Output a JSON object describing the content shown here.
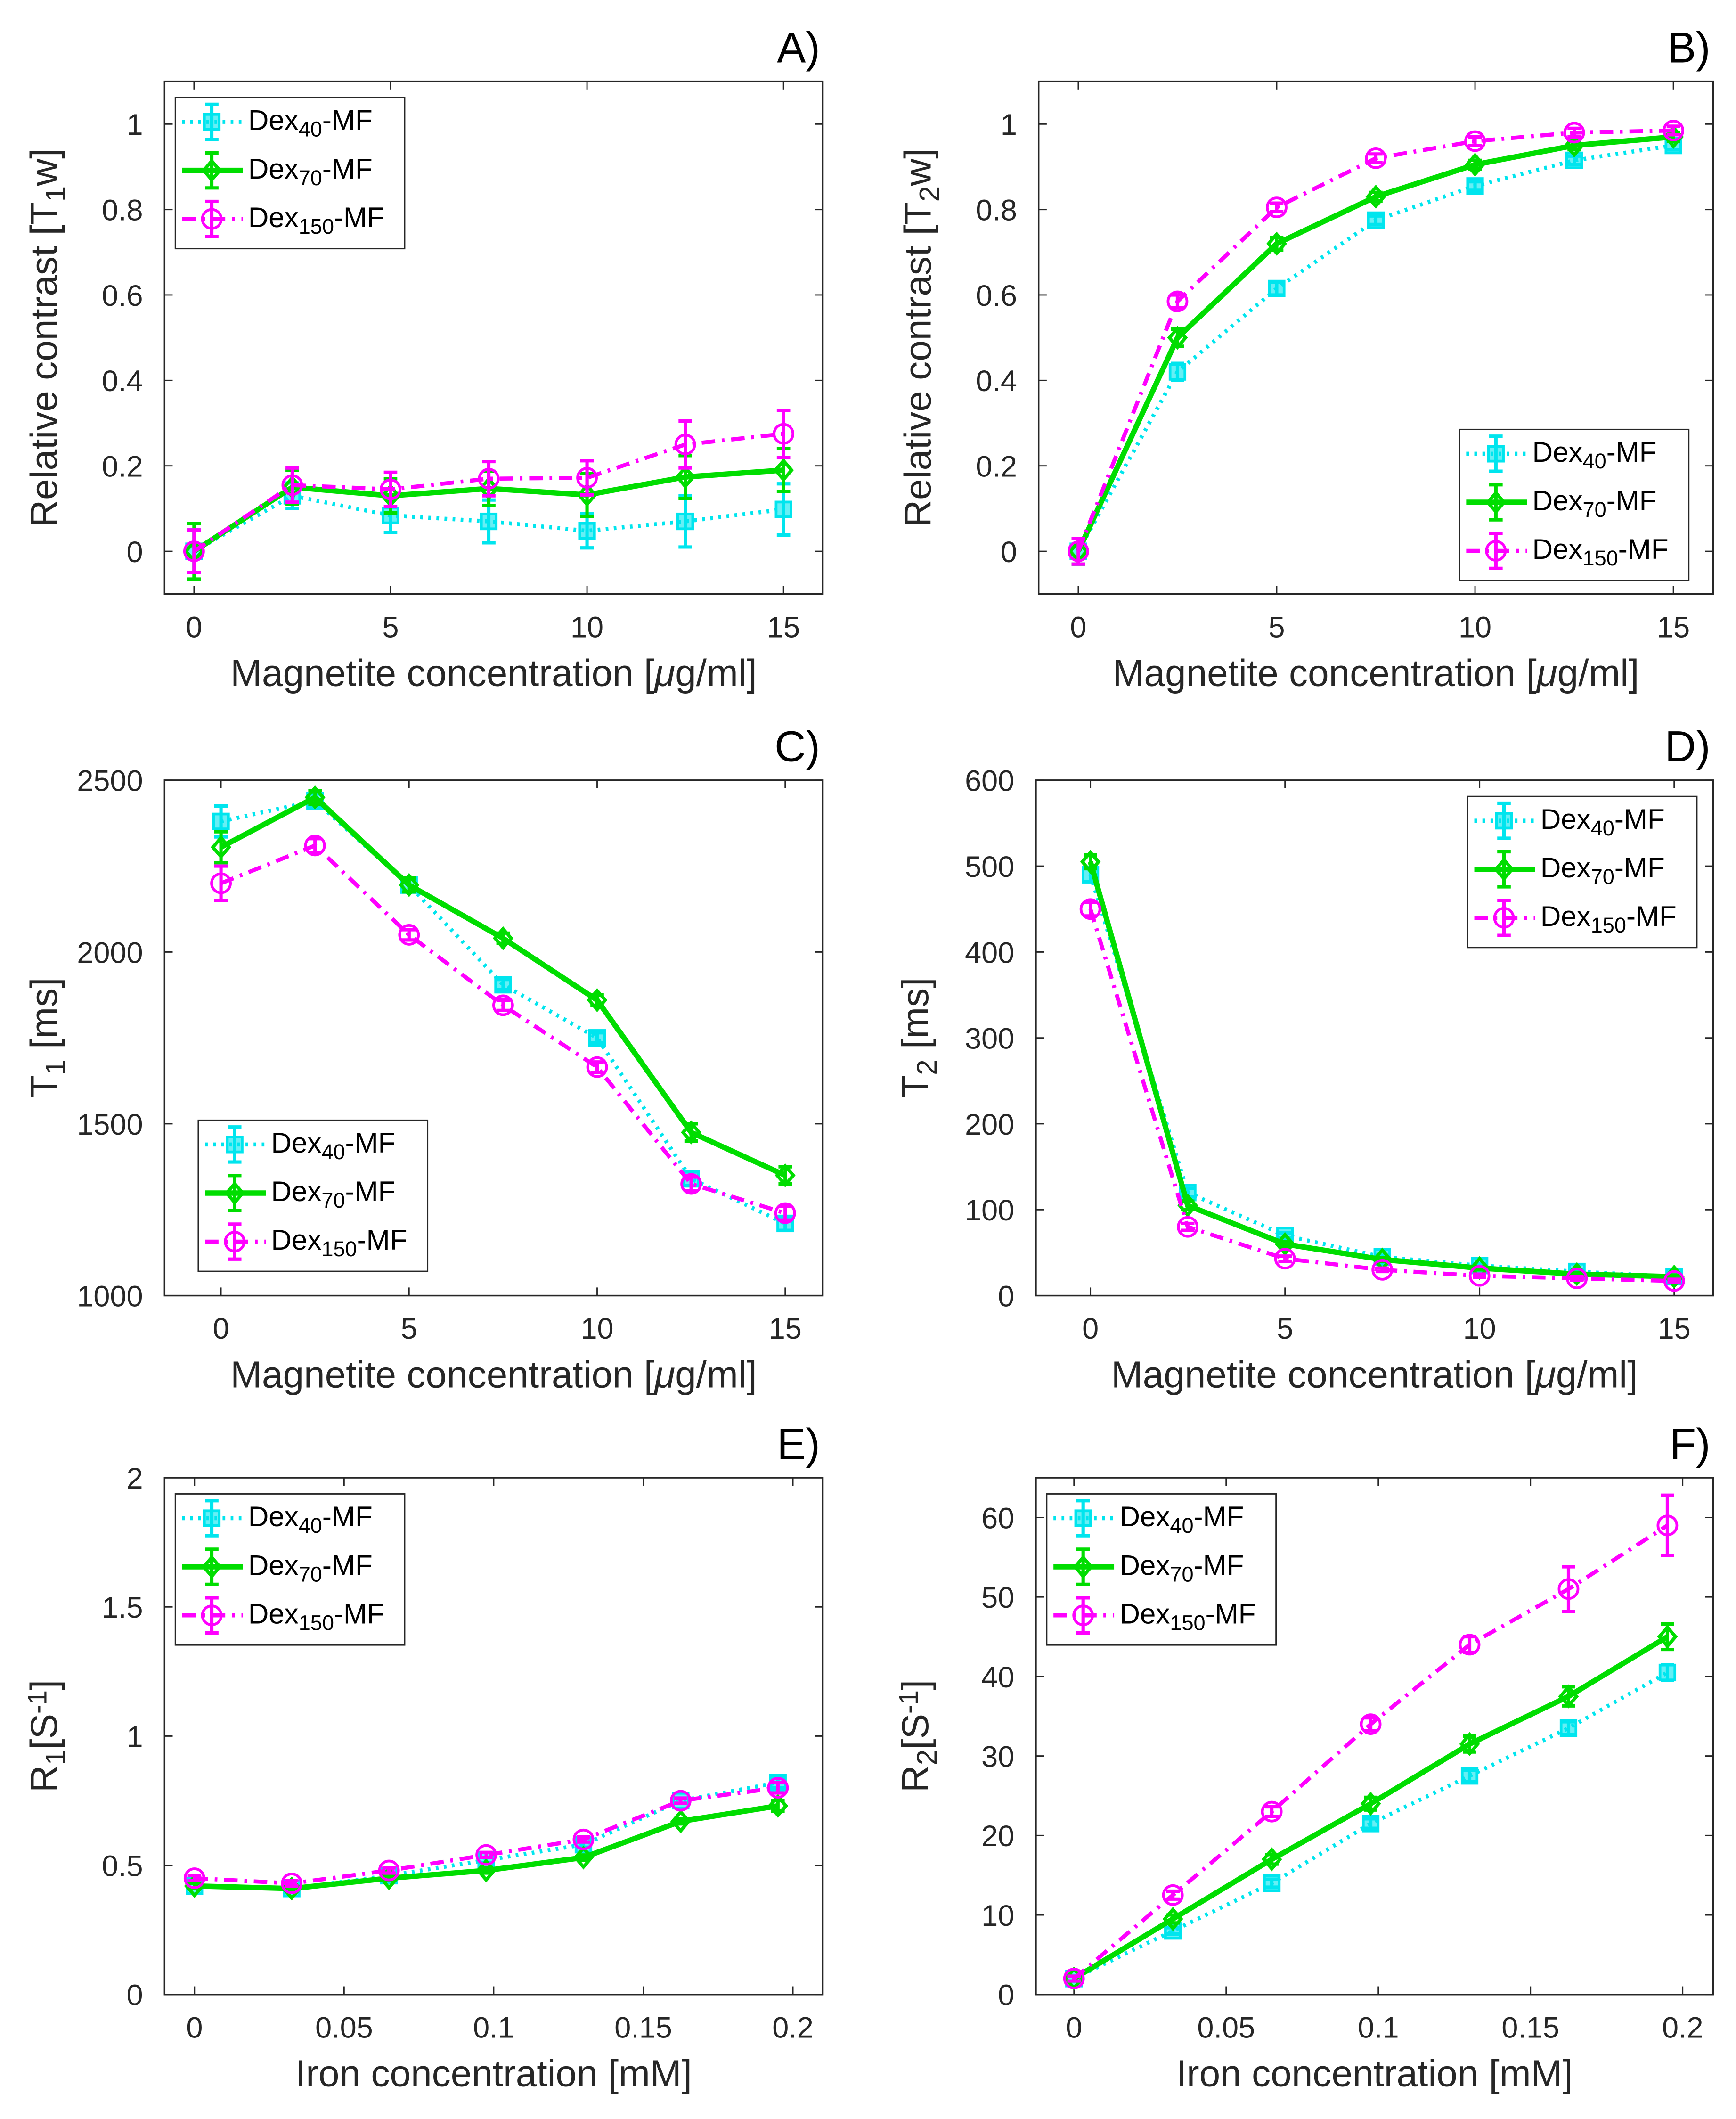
{
  "colors": {
    "Dex40": "#00e5ee",
    "Dex70": "#00dd00",
    "Dex150": "#ff00ff"
  },
  "chart_data": [
    {
      "panel": "A)",
      "type": "line",
      "xlabel": [
        {
          "t": "Magnetite concentration ["
        },
        {
          "t": "μ",
          "it": true
        },
        {
          "t": "g/ml]"
        }
      ],
      "ylabel": [
        {
          "t": "Relative contrast [T"
        },
        {
          "t": "1",
          "sub": true
        },
        {
          "t": "w]"
        }
      ],
      "xlim": [
        -0.75,
        16
      ],
      "ylim": [
        -0.1,
        1.1
      ],
      "xticks": [
        0,
        5,
        10,
        15
      ],
      "xticklabels": [
        "0",
        "5",
        "10",
        "15"
      ],
      "yticks": [
        0,
        0.2,
        0.4,
        0.6,
        0.8,
        1
      ],
      "yticklabels": [
        "0",
        "0.2",
        "0.4",
        "0.6",
        "0.8",
        "1"
      ],
      "legend": "top-left",
      "x": [
        0,
        2.5,
        5,
        7.5,
        10,
        12.5,
        15
      ],
      "series": [
        {
          "name": [
            {
              "t": "Dex"
            },
            {
              "t": "40",
              "sub": true
            },
            {
              "t": "-MF"
            }
          ],
          "key": "Dex40",
          "values": [
            0,
            0.13,
            0.084,
            0.07,
            0.048,
            0.07,
            0.098
          ],
          "err": [
            0.05,
            0.03,
            0.04,
            0.05,
            0.04,
            0.06,
            0.06
          ]
        },
        {
          "name": [
            {
              "t": "Dex"
            },
            {
              "t": "70",
              "sub": true
            },
            {
              "t": "-MF"
            }
          ],
          "key": "Dex70",
          "values": [
            0,
            0.15,
            0.13,
            0.147,
            0.132,
            0.174,
            0.19
          ],
          "err": [
            0.065,
            0.04,
            0.04,
            0.04,
            0.05,
            0.05,
            0.05
          ]
        },
        {
          "name": [
            {
              "t": "Dex"
            },
            {
              "t": "150",
              "sub": true
            },
            {
              "t": "-MF"
            }
          ],
          "key": "Dex150",
          "values": [
            0,
            0.155,
            0.145,
            0.17,
            0.172,
            0.25,
            0.275
          ],
          "err": [
            0.05,
            0.04,
            0.04,
            0.04,
            0.04,
            0.055,
            0.055
          ]
        }
      ]
    },
    {
      "panel": "B)",
      "type": "line",
      "xlabel": [
        {
          "t": "Magnetite concentration ["
        },
        {
          "t": "μ",
          "it": true
        },
        {
          "t": "g/ml]"
        }
      ],
      "ylabel": [
        {
          "t": "Relative contrast [T"
        },
        {
          "t": "2",
          "sub": true
        },
        {
          "t": "w]"
        }
      ],
      "xlim": [
        -1,
        16
      ],
      "ylim": [
        -0.1,
        1.1
      ],
      "xticks": [
        0,
        5,
        10,
        15
      ],
      "xticklabels": [
        "0",
        "5",
        "10",
        "15"
      ],
      "yticks": [
        0,
        0.2,
        0.4,
        0.6,
        0.8,
        1
      ],
      "yticklabels": [
        "0",
        "0.2",
        "0.4",
        "0.6",
        "0.8",
        "1"
      ],
      "legend": "bottom-right",
      "x": [
        0,
        2.5,
        5,
        7.5,
        10,
        12.5,
        15
      ],
      "series": [
        {
          "name": [
            {
              "t": "Dex"
            },
            {
              "t": "40",
              "sub": true
            },
            {
              "t": "-MF"
            }
          ],
          "key": "Dex40",
          "values": [
            0,
            0.42,
            0.615,
            0.775,
            0.855,
            0.915,
            0.95
          ],
          "err": [
            0.03,
            0.02,
            0.015,
            0.01,
            0.01,
            0.01,
            0.01
          ]
        },
        {
          "name": [
            {
              "t": "Dex"
            },
            {
              "t": "70",
              "sub": true
            },
            {
              "t": "-MF"
            }
          ],
          "key": "Dex70",
          "values": [
            0,
            0.5,
            0.72,
            0.83,
            0.905,
            0.95,
            0.97
          ],
          "err": [
            0.03,
            0.02,
            0.015,
            0.01,
            0.01,
            0.01,
            0.01
          ]
        },
        {
          "name": [
            {
              "t": "Dex"
            },
            {
              "t": "150",
              "sub": true
            },
            {
              "t": "-MF"
            }
          ],
          "key": "Dex150",
          "values": [
            0,
            0.585,
            0.805,
            0.92,
            0.96,
            0.98,
            0.985
          ],
          "err": [
            0.03,
            0.015,
            0.01,
            0.01,
            0.01,
            0.01,
            0.01
          ]
        }
      ]
    },
    {
      "panel": "C)",
      "type": "line",
      "xlabel": [
        {
          "t": "Magnetite concentration ["
        },
        {
          "t": "μ",
          "it": true
        },
        {
          "t": "g/ml]"
        }
      ],
      "ylabel": [
        {
          "t": "T"
        },
        {
          "t": "1",
          "sub": true
        },
        {
          "t": " [ms]"
        }
      ],
      "xlim": [
        -1.5,
        16
      ],
      "ylim": [
        1000,
        2500
      ],
      "xticks": [
        0,
        5,
        10,
        15
      ],
      "xticklabels": [
        "0",
        "5",
        "10",
        "15"
      ],
      "yticks": [
        1000,
        1500,
        2000,
        2500
      ],
      "yticklabels": [
        "1000",
        "1500",
        "2000",
        "2500"
      ],
      "legend": "bottom-left",
      "x": [
        0,
        2.5,
        5,
        7.5,
        10,
        12.5,
        15
      ],
      "series": [
        {
          "name": [
            {
              "t": "Dex"
            },
            {
              "t": "40",
              "sub": true
            },
            {
              "t": "-MF"
            }
          ],
          "key": "Dex40",
          "values": [
            2380,
            2440,
            2195,
            1905,
            1750,
            1340,
            1210
          ],
          "err": [
            45,
            20,
            20,
            15,
            15,
            20,
            20
          ]
        },
        {
          "name": [
            {
              "t": "Dex"
            },
            {
              "t": "70",
              "sub": true
            },
            {
              "t": "-MF"
            }
          ],
          "key": "Dex70",
          "values": [
            2305,
            2450,
            2195,
            2040,
            1860,
            1475,
            1350
          ],
          "err": [
            45,
            20,
            20,
            15,
            15,
            25,
            25
          ]
        },
        {
          "name": [
            {
              "t": "Dex"
            },
            {
              "t": "150",
              "sub": true
            },
            {
              "t": "-MF"
            }
          ],
          "key": "Dex150",
          "values": [
            2200,
            2310,
            2050,
            1845,
            1665,
            1325,
            1240
          ],
          "err": [
            50,
            20,
            15,
            15,
            15,
            20,
            20
          ]
        }
      ]
    },
    {
      "panel": "D)",
      "type": "line",
      "xlabel": [
        {
          "t": "Magnetite concentration ["
        },
        {
          "t": "μ",
          "it": true
        },
        {
          "t": "g/ml]"
        }
      ],
      "ylabel": [
        {
          "t": "T"
        },
        {
          "t": "2",
          "sub": true
        },
        {
          "t": " [ms]"
        }
      ],
      "xlim": [
        -1.4,
        16
      ],
      "ylim": [
        0,
        600
      ],
      "xticks": [
        0,
        5,
        10,
        15
      ],
      "xticklabels": [
        "0",
        "5",
        "10",
        "15"
      ],
      "yticks": [
        0,
        100,
        200,
        300,
        400,
        500,
        600
      ],
      "yticklabels": [
        "0",
        "100",
        "200",
        "300",
        "400",
        "500",
        "600"
      ],
      "legend": "top-right",
      "x": [
        0,
        2.5,
        5,
        7.5,
        10,
        12.5,
        15
      ],
      "series": [
        {
          "name": [
            {
              "t": "Dex"
            },
            {
              "t": "40",
              "sub": true
            },
            {
              "t": "-MF"
            }
          ],
          "key": "Dex40",
          "values": [
            490,
            120,
            70,
            45,
            35,
            28,
            22
          ],
          "err": [
            8,
            5,
            3,
            2,
            2,
            2,
            2
          ]
        },
        {
          "name": [
            {
              "t": "Dex"
            },
            {
              "t": "70",
              "sub": true
            },
            {
              "t": "-MF"
            }
          ],
          "key": "Dex70",
          "values": [
            505,
            105,
            60,
            42,
            32,
            25,
            22
          ],
          "err": [
            8,
            5,
            3,
            2,
            2,
            2,
            2
          ]
        },
        {
          "name": [
            {
              "t": "Dex"
            },
            {
              "t": "150",
              "sub": true
            },
            {
              "t": "-MF"
            }
          ],
          "key": "Dex150",
          "values": [
            450,
            80,
            43,
            30,
            23,
            20,
            17
          ],
          "err": [
            8,
            4,
            3,
            2,
            2,
            2,
            2
          ]
        }
      ]
    },
    {
      "panel": "E)",
      "type": "line",
      "xlabel": [
        {
          "t": "Iron concentration [mM]"
        }
      ],
      "ylabel": [
        {
          "t": "R"
        },
        {
          "t": "1",
          "sub": true
        },
        {
          "t": "[S"
        },
        {
          "t": "-1",
          "sup": true
        },
        {
          "t": "]"
        }
      ],
      "xlim": [
        -0.01,
        0.21
      ],
      "ylim": [
        0,
        2
      ],
      "xticks": [
        0,
        0.05,
        0.1,
        0.15,
        0.2
      ],
      "xticklabels": [
        "0",
        "0.05",
        "0.1",
        "0.15",
        "0.2"
      ],
      "yticks": [
        0,
        0.5,
        1,
        1.5,
        2
      ],
      "yticklabels": [
        "0",
        "0.5",
        "1",
        "1.5",
        "2"
      ],
      "legend": "top-left",
      "x": [
        0,
        0.0325,
        0.065,
        0.0975,
        0.13,
        0.1625,
        0.195
      ],
      "series": [
        {
          "name": [
            {
              "t": "Dex"
            },
            {
              "t": "40",
              "sub": true
            },
            {
              "t": "-MF"
            }
          ],
          "key": "Dex40",
          "values": [
            0.42,
            0.41,
            0.46,
            0.52,
            0.58,
            0.75,
            0.82
          ],
          "err": [
            0.01,
            0.01,
            0.01,
            0.01,
            0.01,
            0.01,
            0.02
          ]
        },
        {
          "name": [
            {
              "t": "Dex"
            },
            {
              "t": "70",
              "sub": true
            },
            {
              "t": "-MF"
            }
          ],
          "key": "Dex70",
          "values": [
            0.42,
            0.41,
            0.45,
            0.48,
            0.53,
            0.67,
            0.73
          ],
          "err": [
            0.01,
            0.01,
            0.01,
            0.01,
            0.01,
            0.01,
            0.02
          ]
        },
        {
          "name": [
            {
              "t": "Dex"
            },
            {
              "t": "150",
              "sub": true
            },
            {
              "t": "-MF"
            }
          ],
          "key": "Dex150",
          "values": [
            0.45,
            0.43,
            0.48,
            0.54,
            0.6,
            0.75,
            0.8
          ],
          "err": [
            0.01,
            0.01,
            0.01,
            0.01,
            0.01,
            0.01,
            0.02
          ]
        }
      ]
    },
    {
      "panel": "F)",
      "type": "line",
      "xlabel": [
        {
          "t": "Iron concentration [mM]"
        }
      ],
      "ylabel": [
        {
          "t": "R"
        },
        {
          "t": "2",
          "sub": true
        },
        {
          "t": "[S"
        },
        {
          "t": "-1",
          "sup": true
        },
        {
          "t": "]"
        }
      ],
      "xlim": [
        -0.0125,
        0.21
      ],
      "ylim": [
        0,
        65
      ],
      "xticks": [
        0,
        0.05,
        0.1,
        0.15,
        0.2
      ],
      "xticklabels": [
        "0",
        "0.05",
        "0.1",
        "0.15",
        "0.2"
      ],
      "yticks": [
        0,
        10,
        20,
        30,
        40,
        50,
        60
      ],
      "yticklabels": [
        "0",
        "10",
        "20",
        "30",
        "40",
        "50",
        "60"
      ],
      "legend": "top-left",
      "x": [
        0,
        0.0325,
        0.065,
        0.0975,
        0.13,
        0.1625,
        0.195
      ],
      "series": [
        {
          "name": [
            {
              "t": "Dex"
            },
            {
              "t": "40",
              "sub": true
            },
            {
              "t": "-MF"
            }
          ],
          "key": "Dex40",
          "values": [
            2,
            8,
            14,
            21.5,
            27.5,
            33.5,
            40.5
          ],
          "err": [
            0.3,
            0.4,
            0.5,
            0.6,
            0.7,
            0.8,
            1
          ]
        },
        {
          "name": [
            {
              "t": "Dex"
            },
            {
              "t": "70",
              "sub": true
            },
            {
              "t": "-MF"
            }
          ],
          "key": "Dex70",
          "values": [
            2,
            9.5,
            17,
            24,
            31.5,
            37.5,
            45
          ],
          "err": [
            0.3,
            0.5,
            0.6,
            0.8,
            1,
            1.2,
            1.6
          ]
        },
        {
          "name": [
            {
              "t": "Dex"
            },
            {
              "t": "150",
              "sub": true
            },
            {
              "t": "-MF"
            }
          ],
          "key": "Dex150",
          "values": [
            2,
            12.5,
            23,
            34,
            44,
            51,
            59
          ],
          "err": [
            0.3,
            0.5,
            0.6,
            0.8,
            1,
            2.8,
            3.8
          ]
        }
      ]
    }
  ]
}
